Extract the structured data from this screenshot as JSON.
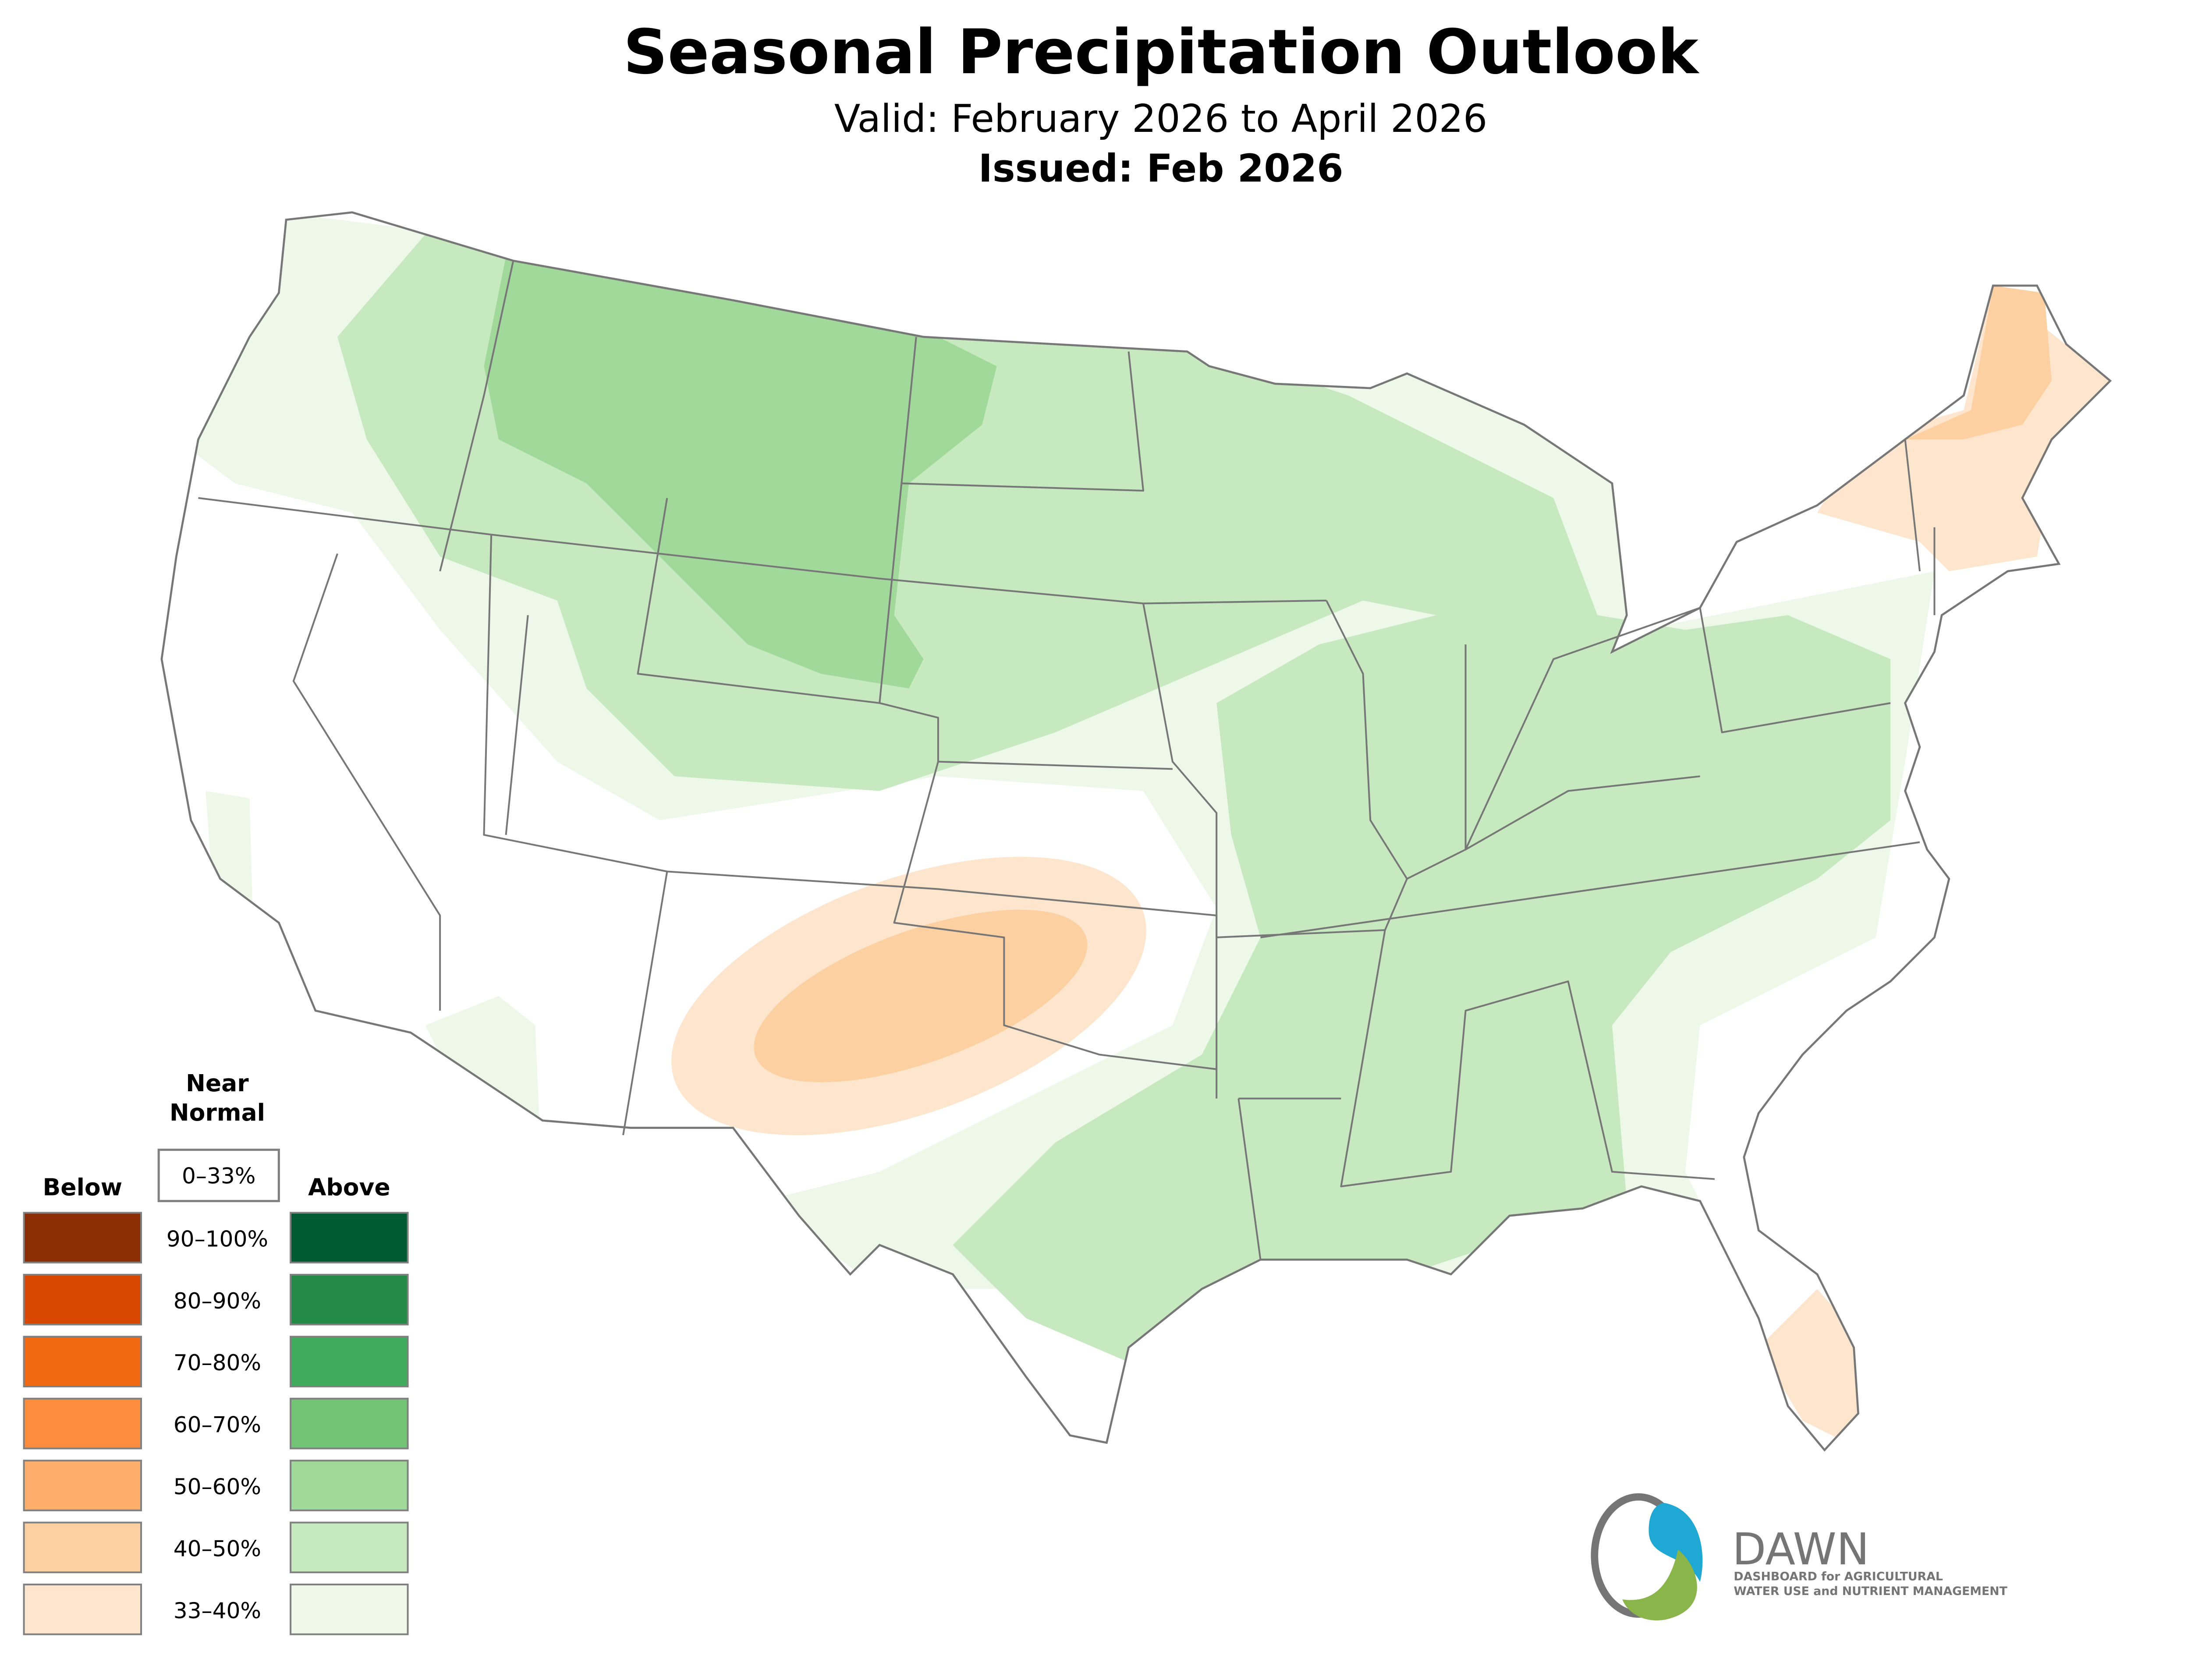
{
  "header": {
    "title": "Seasonal Precipitation Outlook",
    "valid": "Valid: February 2026 to April 2026",
    "issued": "Issued: Feb 2026"
  },
  "legend": {
    "near_normal_line1": "Near",
    "near_normal_line2": "Normal",
    "near_normal_range": "0–33%",
    "below_label": "Below",
    "above_label": "Above",
    "ranges": [
      "90–100%",
      "80–90%",
      "70–80%",
      "60–70%",
      "50–60%",
      "40–50%",
      "33–40%"
    ],
    "below_colors": [
      "#8c2d04",
      "#d94801",
      "#f16913",
      "#fd8d3c",
      "#fdae6b",
      "#fdd0a2",
      "#fee6ce"
    ],
    "above_colors": [
      "#005a32",
      "#238b45",
      "#41ab5d",
      "#74c476",
      "#a1d99b",
      "#c7e9c0",
      "#edf8e9"
    ]
  },
  "logo": {
    "name": "DAWN",
    "tagline_line1": "DASHBOARD for AGRICULTURAL",
    "tagline_line2": "WATER USE and NUTRIENT MANAGEMENT",
    "colors": {
      "blue": "#1fa8d4",
      "green": "#8ab54b",
      "gray": "#757575"
    }
  }
}
